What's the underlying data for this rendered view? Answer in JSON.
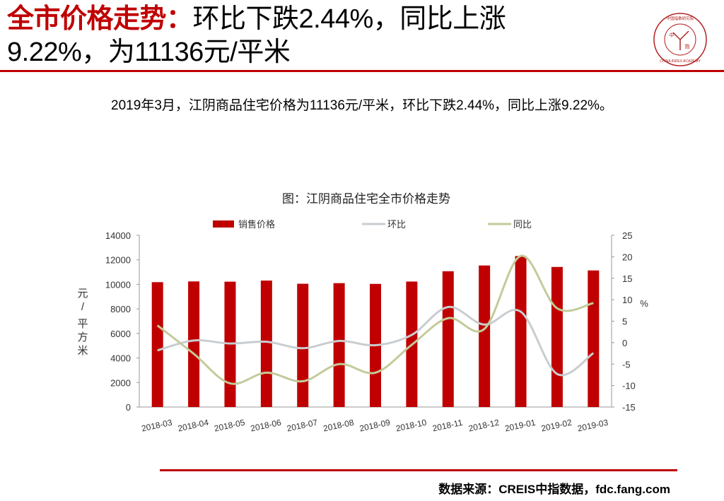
{
  "header": {
    "title_accent": "全市价格走势：",
    "title_line1_rest": "环比下跌2.44%，同比上涨",
    "title_line2": "9.22%，为11136元/平米"
  },
  "logo": {
    "text_top": "中国指数研究院",
    "text_center_1": "中",
    "text_center_2": "指",
    "text_bottom": "CHINA INDEX ACADEMY"
  },
  "summary": "2019年3月，江阴商品住宅价格为11136元/平米，环比下跌2.44%，同比上涨9.22%。",
  "chart_data": {
    "type": "bar+line",
    "title": "图：江阴商品住宅全市价格走势",
    "categories": [
      "2018-03",
      "2018-04",
      "2018-05",
      "2018-06",
      "2018-07",
      "2018-08",
      "2018-09",
      "2018-10",
      "2018-11",
      "2018-12",
      "2019-01",
      "2019-02",
      "2019-03"
    ],
    "series": [
      {
        "name": "销售价格",
        "type": "bar",
        "axis": "left",
        "color": "#c00000",
        "values": [
          10180,
          10240,
          10220,
          10310,
          10050,
          10100,
          10040,
          10230,
          11070,
          11540,
          12310,
          11420,
          11136
        ]
      },
      {
        "name": "环比",
        "type": "line",
        "axis": "right",
        "color": "#c8cdd0",
        "values": [
          -1.8,
          0.5,
          -0.2,
          0.2,
          -1.3,
          0.4,
          -0.6,
          1.8,
          8.3,
          4.2,
          7.2,
          -7.3,
          -2.44
        ]
      },
      {
        "name": "同比",
        "type": "line",
        "axis": "right",
        "color": "#c3cb9a",
        "values": [
          4.0,
          -2.6,
          -9.5,
          -7.0,
          -9.0,
          -5.0,
          -7.0,
          -0.5,
          5.7,
          3.2,
          20.2,
          8.0,
          9.22
        ]
      }
    ],
    "y_left": {
      "label": "元/平方米",
      "min": 0,
      "max": 14000,
      "ticks": [
        0,
        2000,
        4000,
        6000,
        8000,
        10000,
        12000,
        14000
      ]
    },
    "y_right": {
      "label": "%",
      "min": -15,
      "max": 25,
      "ticks": [
        -15,
        -10,
        -5,
        0,
        5,
        10,
        15,
        20,
        25
      ]
    },
    "legend_position": "top"
  },
  "source": "数据来源：CREIS中指数据，fdc.fang.com"
}
